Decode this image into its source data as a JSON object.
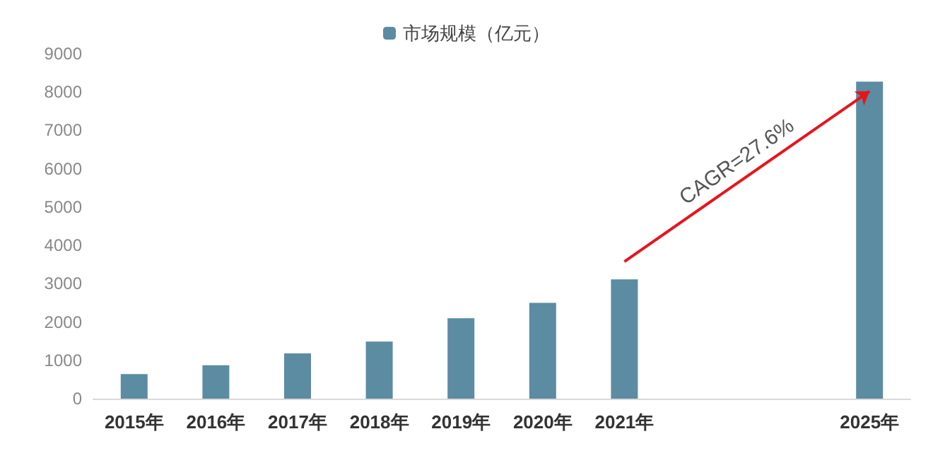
{
  "chart_data": {
    "type": "bar",
    "categories": [
      "2015年",
      "2016年",
      "2017年",
      "2018年",
      "2019年",
      "2020年",
      "2021年",
      null,
      null,
      "2025年"
    ],
    "series": [
      {
        "name": "市场规模（亿元）",
        "color": "#5b8ca2",
        "values": [
          640,
          870,
          1180,
          1490,
          2100,
          2500,
          3110,
          null,
          null,
          8270
        ]
      }
    ],
    "ylim": [
      0,
      9000
    ],
    "yticks": [
      0,
      1000,
      2000,
      3000,
      4000,
      5000,
      6000,
      7000,
      8000,
      9000
    ],
    "grid": false,
    "legend": "top",
    "annotations": [
      "CAGR=27.6%"
    ]
  }
}
